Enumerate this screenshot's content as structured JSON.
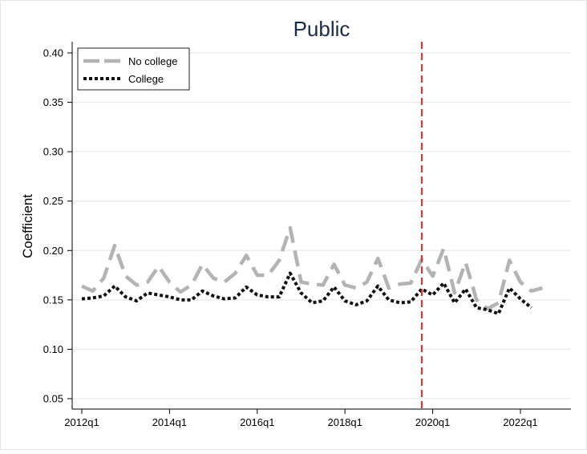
{
  "chart_data": {
    "type": "line",
    "title": "Public",
    "xlabel": "",
    "ylabel": "Coefficient",
    "ylim": [
      0.05,
      0.4
    ],
    "xlim": [
      2012.0,
      2022.75
    ],
    "yticks": [
      0.05,
      0.1,
      0.15,
      0.2,
      0.25,
      0.3,
      0.35,
      0.4
    ],
    "ytick_labels": [
      "0.05",
      "0.10",
      "0.15",
      "0.20",
      "0.25",
      "0.30",
      "0.35",
      "0.40"
    ],
    "xticks": [
      2012.0,
      2014.0,
      2016.0,
      2018.0,
      2020.0,
      2022.0
    ],
    "xtick_labels": [
      "2012q1",
      "2014q1",
      "2016q1",
      "2018q1",
      "2020q1",
      "2022q1"
    ],
    "grid": true,
    "legend_position": "top-left",
    "vline": {
      "x": 2019.75,
      "color": "#e8262a",
      "style": "dashed"
    },
    "x": [
      2012.0,
      2012.25,
      2012.5,
      2012.75,
      2013.0,
      2013.25,
      2013.5,
      2013.75,
      2014.0,
      2014.25,
      2014.5,
      2014.75,
      2015.0,
      2015.25,
      2015.5,
      2015.75,
      2016.0,
      2016.25,
      2016.5,
      2016.75,
      2017.0,
      2017.25,
      2017.5,
      2017.75,
      2018.0,
      2018.25,
      2018.5,
      2018.75,
      2019.0,
      2019.25,
      2019.5,
      2019.75,
      2020.0,
      2020.25,
      2020.5,
      2020.75,
      2021.0,
      2021.25,
      2021.5,
      2021.75,
      2022.0,
      2022.25,
      2022.5
    ],
    "series": [
      {
        "name": "No college",
        "color": "#b3b3b3",
        "style": "dashed",
        "values": [
          0.164,
          0.159,
          0.172,
          0.205,
          0.174,
          0.165,
          0.168,
          0.184,
          0.168,
          0.158,
          0.165,
          0.186,
          0.172,
          0.168,
          0.177,
          0.195,
          0.175,
          0.175,
          0.19,
          0.223,
          0.168,
          0.166,
          0.165,
          0.186,
          0.165,
          0.162,
          0.168,
          0.192,
          0.162,
          0.166,
          0.167,
          0.191,
          0.174,
          0.202,
          0.157,
          0.188,
          0.15,
          0.141,
          0.147,
          0.19,
          0.168,
          0.159,
          0.162
        ]
      },
      {
        "name": "College",
        "color": "#111111",
        "style": "dotted",
        "values": [
          0.151,
          0.152,
          0.154,
          0.164,
          0.153,
          0.149,
          0.157,
          0.155,
          0.153,
          0.15,
          0.15,
          0.159,
          0.154,
          0.151,
          0.152,
          0.163,
          0.155,
          0.153,
          0.153,
          0.177,
          0.157,
          0.147,
          0.149,
          0.163,
          0.149,
          0.145,
          0.149,
          0.164,
          0.15,
          0.147,
          0.148,
          0.161,
          0.155,
          0.167,
          0.147,
          0.161,
          0.142,
          0.14,
          0.136,
          0.162,
          0.151,
          0.142,
          null
        ]
      }
    ]
  }
}
